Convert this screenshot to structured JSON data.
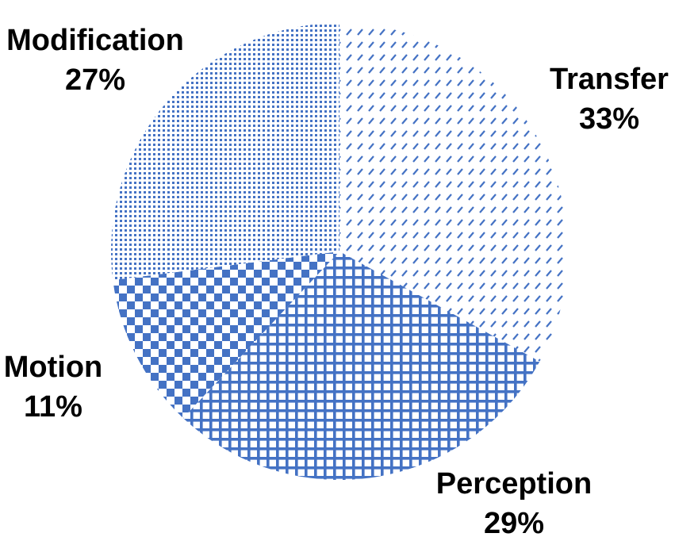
{
  "chart_data": {
    "type": "pie",
    "start_angle_deg": 0,
    "direction": "clockwise",
    "slices": [
      {
        "label": "Transfer",
        "value": 33,
        "display": "33%",
        "pattern": "diagonal-dash",
        "color": "#4472c4"
      },
      {
        "label": "Perception",
        "value": 29,
        "display": "29%",
        "pattern": "grid",
        "color": "#4472c4"
      },
      {
        "label": "Motion",
        "value": 11,
        "display": "11%",
        "pattern": "checker",
        "color": "#4472c4"
      },
      {
        "label": "Modification",
        "value": 27,
        "display": "27%",
        "pattern": "dots",
        "color": "#4472c4"
      }
    ]
  }
}
